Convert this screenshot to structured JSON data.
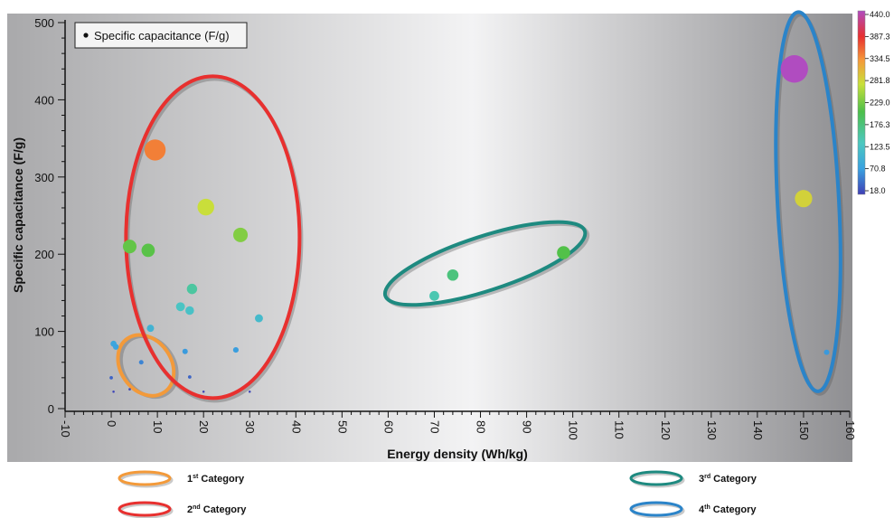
{
  "chart_data": {
    "type": "scatter",
    "title": "",
    "xlabel": "Energy density (Wh/kg)",
    "ylabel": "Specific capacitance (F/g)",
    "xlim": [
      -10,
      160
    ],
    "ylim": [
      0,
      500
    ],
    "xticks": [
      -10,
      0,
      10,
      20,
      30,
      40,
      50,
      60,
      70,
      80,
      90,
      100,
      110,
      120,
      130,
      140,
      150,
      160
    ],
    "yticks": [
      0,
      100,
      200,
      300,
      400,
      500
    ],
    "grid": false,
    "legend": {
      "label": "Specific capacitance (F/g)",
      "placement": "top-left"
    },
    "size_and_color_encode": "Specific capacitance (F/g)",
    "colorbar": {
      "ticks": [
        "440.0",
        "387.3",
        "334.5",
        "281.8",
        "229.0",
        "176.3",
        "123.5",
        "70.8",
        "18.0"
      ],
      "min": 18.0,
      "max": 440.0,
      "colors": [
        "#3f3fb5",
        "#3aa2e0",
        "#4cc8c0",
        "#4cbf4a",
        "#c8e03a",
        "#f59a3a",
        "#e8302f",
        "#b04cc0"
      ]
    },
    "points": [
      {
        "x": 0.5,
        "y": 84
      },
      {
        "x": 1,
        "y": 80
      },
      {
        "x": 6.5,
        "y": 60
      },
      {
        "x": 0,
        "y": 40
      },
      {
        "x": 4,
        "y": 25
      },
      {
        "x": 0.5,
        "y": 22
      },
      {
        "x": 9.5,
        "y": 335
      },
      {
        "x": 20.5,
        "y": 261
      },
      {
        "x": 28,
        "y": 225
      },
      {
        "x": 4,
        "y": 210
      },
      {
        "x": 8,
        "y": 205
      },
      {
        "x": 17.5,
        "y": 155
      },
      {
        "x": 15,
        "y": 132
      },
      {
        "x": 17,
        "y": 127
      },
      {
        "x": 8.5,
        "y": 104
      },
      {
        "x": 32,
        "y": 117
      },
      {
        "x": 16,
        "y": 74
      },
      {
        "x": 27,
        "y": 76
      },
      {
        "x": 17,
        "y": 41
      },
      {
        "x": 20,
        "y": 22
      },
      {
        "x": 30,
        "y": 22
      },
      {
        "x": 70,
        "y": 146
      },
      {
        "x": 74,
        "y": 173
      },
      {
        "x": 98,
        "y": 202
      },
      {
        "x": 148,
        "y": 440
      },
      {
        "x": 150,
        "y": 272
      },
      {
        "x": 155,
        "y": 73
      }
    ],
    "categories": [
      {
        "ordinal": "1",
        "suffix": "st",
        "label": " Category",
        "color": "#f39a3a",
        "members_x_range": [
          0,
          7
        ]
      },
      {
        "ordinal": "2",
        "suffix": "nd",
        "label": " Category",
        "color": "#e8302f",
        "members_x_range": [
          4,
          32
        ]
      },
      {
        "ordinal": "3",
        "suffix": "rd",
        "label": " Category",
        "color": "#1e8a80",
        "members_x_range": [
          70,
          98
        ]
      },
      {
        "ordinal": "4",
        "suffix": "th",
        "label": " Category",
        "color": "#2b84c9",
        "members_x_range": [
          148,
          155
        ]
      }
    ]
  }
}
